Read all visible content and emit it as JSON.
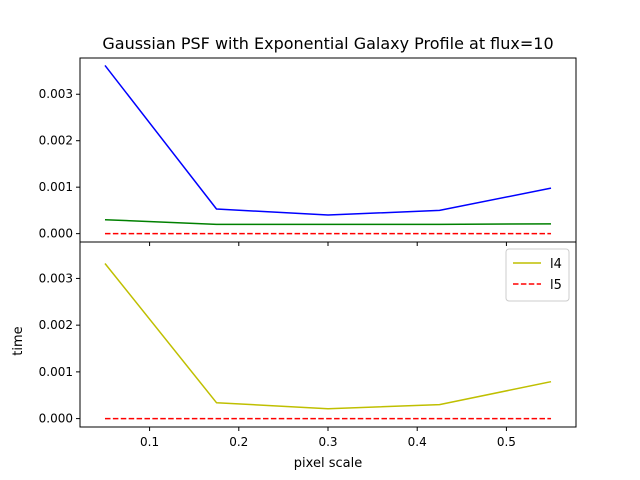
{
  "chart_data": {
    "type": "line",
    "title": "Gaussian PSF with Exponential Galaxy Profile at flux=10",
    "xlabel": "pixel scale",
    "ylabel": "time",
    "xlim": [
      0.022,
      0.578
    ],
    "x_ticks": [
      0.1,
      0.2,
      0.3,
      0.4,
      0.5
    ],
    "x_tick_labels": [
      "0.1",
      "0.2",
      "0.3",
      "0.4",
      "0.5"
    ],
    "panels": [
      {
        "position": "top",
        "ylim": [
          -0.00018,
          0.00378
        ],
        "y_ticks": [
          0.0,
          0.001,
          0.002,
          0.003
        ],
        "y_tick_labels": [
          "0.000",
          "0.001",
          "0.002",
          "0.003"
        ],
        "legend": null,
        "series": [
          {
            "color": "#0000ff",
            "dash": "solid",
            "x": [
              0.05,
              0.175,
              0.3,
              0.425,
              0.55
            ],
            "y": [
              0.00362,
              0.00053,
              0.0004,
              0.0005,
              0.00098
            ]
          },
          {
            "color": "#008000",
            "dash": "solid",
            "x": [
              0.05,
              0.175,
              0.3,
              0.425,
              0.55
            ],
            "y": [
              0.0003,
              0.0002,
              0.0002,
              0.0002,
              0.00021
            ]
          },
          {
            "color": "#ff0000",
            "dash": "dashed",
            "x": [
              0.05,
              0.175,
              0.3,
              0.425,
              0.55
            ],
            "y": [
              0.0,
              0.0,
              0.0,
              0.0,
              0.0
            ]
          }
        ]
      },
      {
        "position": "bottom",
        "ylim": [
          -0.00018,
          0.00378
        ],
        "y_ticks": [
          0.0,
          0.001,
          0.002,
          0.003
        ],
        "y_tick_labels": [
          "0.000",
          "0.001",
          "0.002",
          "0.003"
        ],
        "legend": "top-right",
        "series": [
          {
            "name": "l4",
            "color": "#bfbf00",
            "dash": "solid",
            "x": [
              0.05,
              0.175,
              0.3,
              0.425,
              0.55
            ],
            "y": [
              0.00332,
              0.00034,
              0.00021,
              0.0003,
              0.00079
            ]
          },
          {
            "name": "l5",
            "color": "#ff0000",
            "dash": "dashed",
            "x": [
              0.05,
              0.175,
              0.3,
              0.425,
              0.55
            ],
            "y": [
              0.0,
              0.0,
              0.0,
              0.0,
              0.0
            ]
          }
        ]
      }
    ]
  }
}
